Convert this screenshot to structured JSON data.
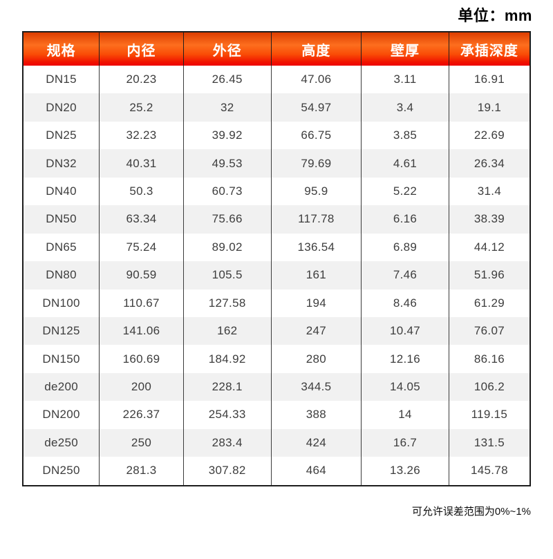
{
  "page": {
    "unit_label": "单位：mm",
    "footnote": "可允许误差范围为0%~1%"
  },
  "colors": {
    "header_gradient_top": "#dc3e00",
    "header_gradient_mid": "#fd6e1e",
    "header_gradient_bottom": "#ee0600",
    "header_text": "#ffffff",
    "row_alt_background": "#f1f1f1",
    "cell_text": "#3d3d3d",
    "table_border": "#1c1c1c"
  },
  "table": {
    "columns": [
      "规格",
      "内径",
      "外径",
      "高度",
      "壁厚",
      "承插深度"
    ],
    "rows": [
      [
        "DN15",
        "20.23",
        "26.45",
        "47.06",
        "3.11",
        "16.91"
      ],
      [
        "DN20",
        "25.2",
        "32",
        "54.97",
        "3.4",
        "19.1"
      ],
      [
        "DN25",
        "32.23",
        "39.92",
        "66.75",
        "3.85",
        "22.69"
      ],
      [
        "DN32",
        "40.31",
        "49.53",
        "79.69",
        "4.61",
        "26.34"
      ],
      [
        "DN40",
        "50.3",
        "60.73",
        "95.9",
        "5.22",
        "31.4"
      ],
      [
        "DN50",
        "63.34",
        "75.66",
        "117.78",
        "6.16",
        "38.39"
      ],
      [
        "DN65",
        "75.24",
        "89.02",
        "136.54",
        "6.89",
        "44.12"
      ],
      [
        "DN80",
        "90.59",
        "105.5",
        "161",
        "7.46",
        "51.96"
      ],
      [
        "DN100",
        "110.67",
        "127.58",
        "194",
        "8.46",
        "61.29"
      ],
      [
        "DN125",
        "141.06",
        "162",
        "247",
        "10.47",
        "76.07"
      ],
      [
        "DN150",
        "160.69",
        "184.92",
        "280",
        "12.16",
        "86.16"
      ],
      [
        "de200",
        "200",
        "228.1",
        "344.5",
        "14.05",
        "106.2"
      ],
      [
        "DN200",
        "226.37",
        "254.33",
        "388",
        "14",
        "119.15"
      ],
      [
        "de250",
        "250",
        "283.4",
        "424",
        "16.7",
        "131.5"
      ],
      [
        "DN250",
        "281.3",
        "307.82",
        "464",
        "13.26",
        "145.78"
      ]
    ]
  },
  "chart_data": {
    "type": "table",
    "title": "",
    "unit": "mm",
    "columns": [
      "规格",
      "内径",
      "外径",
      "高度",
      "壁厚",
      "承插深度"
    ],
    "rows": [
      [
        "DN15",
        20.23,
        26.45,
        47.06,
        3.11,
        16.91
      ],
      [
        "DN20",
        25.2,
        32,
        54.97,
        3.4,
        19.1
      ],
      [
        "DN25",
        32.23,
        39.92,
        66.75,
        3.85,
        22.69
      ],
      [
        "DN32",
        40.31,
        49.53,
        79.69,
        4.61,
        26.34
      ],
      [
        "DN40",
        50.3,
        60.73,
        95.9,
        5.22,
        31.4
      ],
      [
        "DN50",
        63.34,
        75.66,
        117.78,
        6.16,
        38.39
      ],
      [
        "DN65",
        75.24,
        89.02,
        136.54,
        6.89,
        44.12
      ],
      [
        "DN80",
        90.59,
        105.5,
        161,
        7.46,
        51.96
      ],
      [
        "DN100",
        110.67,
        127.58,
        194,
        8.46,
        61.29
      ],
      [
        "DN125",
        141.06,
        162,
        247,
        10.47,
        76.07
      ],
      [
        "DN150",
        160.69,
        184.92,
        280,
        12.16,
        86.16
      ],
      [
        "de200",
        200,
        228.1,
        344.5,
        14.05,
        106.2
      ],
      [
        "DN200",
        226.37,
        254.33,
        388,
        14,
        119.15
      ],
      [
        "de250",
        250,
        283.4,
        424,
        16.7,
        131.5
      ],
      [
        "DN250",
        281.3,
        307.82,
        464,
        13.26,
        145.78
      ]
    ],
    "annotations": [
      "单位：mm",
      "可允许误差范围为0%~1%"
    ]
  }
}
